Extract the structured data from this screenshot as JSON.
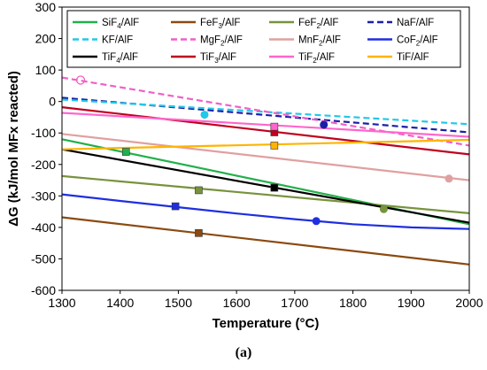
{
  "caption": "(a)",
  "chart_data": {
    "type": "line",
    "title": "",
    "xlabel": "Temperature (°C)",
    "ylabel": "ΔG (kJ/mol MFx reacted)",
    "xlim": [
      1300,
      2000
    ],
    "ylim": [
      -600,
      300
    ],
    "xticks": [
      1300,
      1400,
      1500,
      1600,
      1700,
      1800,
      1900,
      2000
    ],
    "yticks": [
      -600,
      -500,
      -400,
      -300,
      -200,
      -100,
      0,
      100,
      200,
      300
    ],
    "grid": false,
    "legend_position": "top",
    "legend_columns": 4,
    "series": [
      {
        "name": "SiF4/AlF",
        "label_main": "SiF",
        "label_sub": "4",
        "label_rest": "/AlF",
        "color": "#22b04a",
        "dash": "solid",
        "x": [
          1300,
          2000
        ],
        "y": [
          -120,
          -390
        ],
        "marker": {
          "x": 1410,
          "y": -160,
          "shape": "square"
        }
      },
      {
        "name": "FeF3/AlF",
        "label_main": "FeF",
        "label_sub": "3",
        "label_rest": "/AlF",
        "color": "#8b4a10",
        "dash": "solid",
        "x": [
          1300,
          2000
        ],
        "y": [
          -368,
          -518
        ],
        "marker": {
          "x": 1535,
          "y": -418,
          "shape": "square"
        }
      },
      {
        "name": "FeF2/AlF",
        "label_main": "FeF",
        "label_sub": "2",
        "label_rest": "/AlF",
        "color": "#77933c",
        "dash": "solid",
        "x": [
          1300,
          2000
        ],
        "y": [
          -237,
          -355
        ],
        "marker": {
          "x": 1535,
          "y": -282,
          "shape": "square"
        }
      },
      {
        "name": "NaF/AlF",
        "label_main": "NaF/AlF",
        "label_sub": "",
        "label_rest": "",
        "color": "#1b1fa8",
        "dash": "dash",
        "x": [
          1300,
          2000
        ],
        "y": [
          12,
          -98
        ],
        "marker": {
          "x": 1750,
          "y": -74,
          "shape": "circle"
        }
      },
      {
        "name": "KF/AlF",
        "label_main": "KF/AlF",
        "label_sub": "",
        "label_rest": "",
        "color": "#22c8e8",
        "dash": "dash",
        "x": [
          1300,
          2000
        ],
        "y": [
          6,
          -72
        ],
        "marker": {
          "x": 1545,
          "y": -42,
          "shape": "circle"
        }
      },
      {
        "name": "MgF2/AlF",
        "label_main": "MgF",
        "label_sub": "2",
        "label_rest": "/AlF",
        "color": "#f15fc8",
        "dash": "dash",
        "x": [
          1300,
          2000
        ],
        "y": [
          76,
          -140
        ],
        "marker": {
          "x": 1332,
          "y": 68,
          "shape": "open-circle"
        }
      },
      {
        "name": "MnF2/AlF",
        "label_main": "MnF",
        "label_sub": "2",
        "label_rest": "/AlF",
        "color": "#e0a0a0",
        "dash": "solid",
        "x": [
          1300,
          2000
        ],
        "y": [
          -103,
          -250
        ],
        "marker": {
          "x": 1965,
          "y": -245,
          "shape": "circle"
        }
      },
      {
        "name": "CoF2/AlF",
        "label_main": "CoF",
        "label_sub": "2",
        "label_rest": "/AlF",
        "color": "#1f2fe0",
        "dash": "solid",
        "x": [
          1300,
          1400,
          1500,
          1600,
          1700,
          1800,
          1900,
          2000
        ],
        "y": [
          -295,
          -316,
          -336,
          -356,
          -374,
          -390,
          -400,
          -405
        ],
        "marker": {
          "x": 1495,
          "y": -333,
          "marker2": true,
          "shape": "square"
        },
        "marker_b": {
          "x": 1737,
          "y": -380,
          "shape": "circle"
        }
      },
      {
        "name": "TiF4/AlF",
        "label_main": "TiF",
        "label_sub": "4",
        "label_rest": "/AlF",
        "color": "#000000",
        "dash": "solid",
        "x": [
          1300,
          2000
        ],
        "y": [
          -152,
          -385
        ],
        "marker": {
          "x": 1665,
          "y": -274,
          "shape": "square"
        }
      },
      {
        "name": "TiF3/AlF",
        "label_main": "TiF",
        "label_sub": "3",
        "label_rest": "/AlF",
        "color": "#c00020",
        "dash": "solid",
        "x": [
          1300,
          2000
        ],
        "y": [
          -18,
          -168
        ],
        "marker": {
          "x": 1665,
          "y": -98,
          "shape": "square"
        }
      },
      {
        "name": "TiF2/AlF",
        "label_main": "TiF",
        "label_sub": "2",
        "label_rest": "/AlF",
        "color": "#ff66cc",
        "dash": "solid",
        "x": [
          1300,
          2000
        ],
        "y": [
          -36,
          -112
        ],
        "marker": {
          "x": 1665,
          "y": -80,
          "shape": "square"
        }
      },
      {
        "name": "TiF/AlF",
        "label_main": "TiF/AlF",
        "label_sub": "",
        "label_rest": "",
        "color": "#ffb400",
        "dash": "solid",
        "x": [
          1300,
          2000
        ],
        "y": [
          -152,
          -122
        ],
        "marker": {
          "x": 1665,
          "y": -140,
          "shape": "square"
        }
      }
    ],
    "extra_markers": [
      {
        "series": "FeF2/AlF",
        "x": 1853,
        "y": -342,
        "shape": "circle"
      }
    ]
  }
}
